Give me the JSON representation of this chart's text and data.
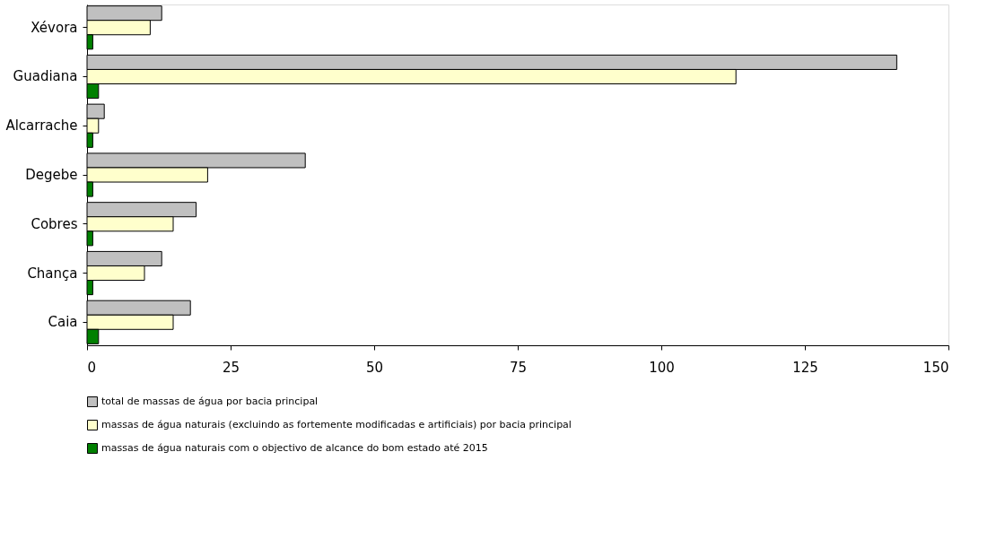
{
  "chart_data": {
    "type": "bar",
    "orientation": "horizontal",
    "categories": [
      "Xévora",
      "Guadiana",
      "Alcarrache",
      "Degebe",
      "Cobres",
      "Chança",
      "Caia"
    ],
    "series": [
      {
        "name": "total de massas de água por bacia principal",
        "color": "#c0c0c0",
        "values": [
          13,
          141,
          3,
          38,
          19,
          13,
          18
        ]
      },
      {
        "name": "massas de água naturais (excluindo as fortemente modificadas e artificiais) por bacia principal",
        "color": "#ffffcc",
        "values": [
          11,
          113,
          2,
          21,
          15,
          10,
          15
        ]
      },
      {
        "name": "massas de água naturais com o objectivo de alcance do bom estado até 2015",
        "color": "#008000",
        "values": [
          1,
          2,
          1,
          1,
          1,
          1,
          2
        ]
      }
    ],
    "xlim": [
      0,
      150
    ],
    "xticks": [
      0,
      25,
      50,
      75,
      100,
      125,
      150
    ],
    "grid": false,
    "legend": "bottom"
  }
}
